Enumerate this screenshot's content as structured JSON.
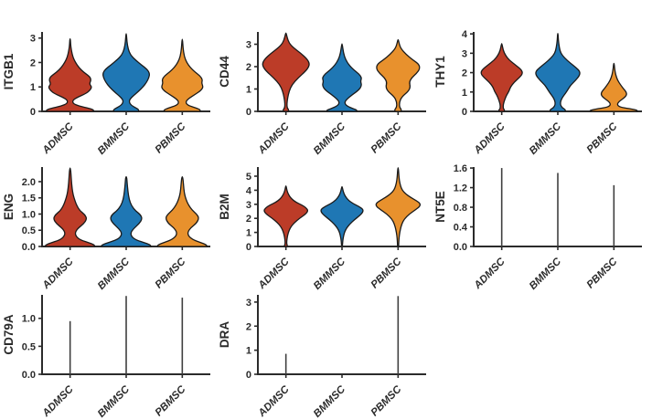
{
  "figure": {
    "categories": [
      "ADMSC",
      "BMMSC",
      "PBMSC"
    ],
    "colors": {
      "ADMSC": "#bc3c28",
      "BMMSC": "#1f77b4",
      "PBMSC": "#e8912d",
      "outline": "#1a1a1a",
      "axis": "#2b2b2b",
      "stem": "#3f3f3f",
      "text": "#2b2b2b",
      "background": "#ffffff"
    }
  },
  "chart_data": [
    {
      "type": "violin",
      "gene": "ITGB1",
      "ylabel": "ITGB1",
      "xlabel": "",
      "ylim": [
        0,
        3.25
      ],
      "tick_values": [
        0,
        1,
        2,
        3
      ],
      "tick_labels": [
        "0",
        "1",
        "2",
        "3"
      ],
      "categories": [
        "ADMSC",
        "BMMSC",
        "PBMSC"
      ],
      "violins": {
        "ADMSC": [
          [
            0,
            0.95
          ],
          [
            0.05,
            0.97
          ],
          [
            0.12,
            0.8
          ],
          [
            0.22,
            0.35
          ],
          [
            0.32,
            0.12
          ],
          [
            0.45,
            0.1
          ],
          [
            0.58,
            0.3
          ],
          [
            0.72,
            0.62
          ],
          [
            0.85,
            0.8
          ],
          [
            1.0,
            0.88
          ],
          [
            1.12,
            0.78
          ],
          [
            1.28,
            0.85
          ],
          [
            1.42,
            0.8
          ],
          [
            1.6,
            0.55
          ],
          [
            1.8,
            0.35
          ],
          [
            2.0,
            0.22
          ],
          [
            2.2,
            0.12
          ],
          [
            2.5,
            0.05
          ],
          [
            2.75,
            0.02
          ],
          [
            2.97,
            0.01
          ]
        ],
        "BMMSC": [
          [
            0,
            0.5
          ],
          [
            0.06,
            0.52
          ],
          [
            0.14,
            0.4
          ],
          [
            0.25,
            0.2
          ],
          [
            0.38,
            0.12
          ],
          [
            0.5,
            0.15
          ],
          [
            0.65,
            0.3
          ],
          [
            0.82,
            0.5
          ],
          [
            1.0,
            0.68
          ],
          [
            1.18,
            0.82
          ],
          [
            1.38,
            0.92
          ],
          [
            1.55,
            0.95
          ],
          [
            1.72,
            0.85
          ],
          [
            1.9,
            0.62
          ],
          [
            2.1,
            0.38
          ],
          [
            2.3,
            0.18
          ],
          [
            2.55,
            0.08
          ],
          [
            2.85,
            0.03
          ],
          [
            3.18,
            0.01
          ]
        ],
        "PBMSC": [
          [
            0,
            0.72
          ],
          [
            0.06,
            0.75
          ],
          [
            0.14,
            0.55
          ],
          [
            0.25,
            0.22
          ],
          [
            0.38,
            0.13
          ],
          [
            0.52,
            0.25
          ],
          [
            0.68,
            0.5
          ],
          [
            0.85,
            0.75
          ],
          [
            1.0,
            0.85
          ],
          [
            1.15,
            0.78
          ],
          [
            1.3,
            0.82
          ],
          [
            1.45,
            0.72
          ],
          [
            1.62,
            0.5
          ],
          [
            1.8,
            0.32
          ],
          [
            2.0,
            0.18
          ],
          [
            2.25,
            0.08
          ],
          [
            2.6,
            0.03
          ],
          [
            2.95,
            0.01
          ]
        ]
      }
    },
    {
      "type": "violin",
      "gene": "CD44",
      "ylabel": "CD44",
      "xlabel": "",
      "ylim": [
        0,
        3.55
      ],
      "tick_values": [
        0,
        1,
        2,
        3
      ],
      "tick_labels": [
        "0",
        "1",
        "2",
        "3"
      ],
      "categories": [
        "ADMSC",
        "BMMSC",
        "PBMSC"
      ],
      "violins": {
        "ADMSC": [
          [
            0,
            0.1
          ],
          [
            0.07,
            0.12
          ],
          [
            0.15,
            0.05
          ],
          [
            0.35,
            0.04
          ],
          [
            0.6,
            0.07
          ],
          [
            0.9,
            0.13
          ],
          [
            1.2,
            0.25
          ],
          [
            1.5,
            0.5
          ],
          [
            1.8,
            0.8
          ],
          [
            2.0,
            0.93
          ],
          [
            2.15,
            0.95
          ],
          [
            2.35,
            0.85
          ],
          [
            2.6,
            0.6
          ],
          [
            2.85,
            0.3
          ],
          [
            3.05,
            0.13
          ],
          [
            3.3,
            0.05
          ],
          [
            3.5,
            0.01
          ]
        ],
        "BMMSC": [
          [
            0,
            0.6
          ],
          [
            0.05,
            0.62
          ],
          [
            0.12,
            0.45
          ],
          [
            0.25,
            0.18
          ],
          [
            0.4,
            0.1
          ],
          [
            0.55,
            0.2
          ],
          [
            0.75,
            0.42
          ],
          [
            0.95,
            0.68
          ],
          [
            1.15,
            0.8
          ],
          [
            1.35,
            0.75
          ],
          [
            1.5,
            0.8
          ],
          [
            1.68,
            0.68
          ],
          [
            1.85,
            0.48
          ],
          [
            2.05,
            0.3
          ],
          [
            2.3,
            0.15
          ],
          [
            2.6,
            0.06
          ],
          [
            3.02,
            0.01
          ]
        ],
        "PBMSC": [
          [
            0,
            0.12
          ],
          [
            0.08,
            0.14
          ],
          [
            0.18,
            0.06
          ],
          [
            0.4,
            0.05
          ],
          [
            0.65,
            0.15
          ],
          [
            0.9,
            0.42
          ],
          [
            1.1,
            0.5
          ],
          [
            1.3,
            0.45
          ],
          [
            1.5,
            0.55
          ],
          [
            1.7,
            0.75
          ],
          [
            1.9,
            0.88
          ],
          [
            2.1,
            0.85
          ],
          [
            2.3,
            0.6
          ],
          [
            2.55,
            0.32
          ],
          [
            2.8,
            0.12
          ],
          [
            3.0,
            0.05
          ],
          [
            3.2,
            0.01
          ]
        ]
      }
    },
    {
      "type": "violin",
      "gene": "THY1",
      "ylabel": "THY1",
      "xlabel": "",
      "ylim": [
        0,
        4.1
      ],
      "tick_values": [
        0,
        1,
        2,
        3,
        4
      ],
      "tick_labels": [
        "0",
        "1",
        "2",
        "3",
        "4"
      ],
      "categories": [
        "ADMSC",
        "BMMSC",
        "PBMSC"
      ],
      "violins": {
        "ADMSC": [
          [
            0,
            0.1
          ],
          [
            0.07,
            0.12
          ],
          [
            0.15,
            0.06
          ],
          [
            0.35,
            0.06
          ],
          [
            0.6,
            0.12
          ],
          [
            0.85,
            0.2
          ],
          [
            1.05,
            0.3
          ],
          [
            1.25,
            0.35
          ],
          [
            1.5,
            0.5
          ],
          [
            1.75,
            0.72
          ],
          [
            1.95,
            0.85
          ],
          [
            2.15,
            0.8
          ],
          [
            2.4,
            0.55
          ],
          [
            2.65,
            0.3
          ],
          [
            2.9,
            0.15
          ],
          [
            3.15,
            0.06
          ],
          [
            3.5,
            0.01
          ]
        ],
        "BMMSC": [
          [
            0,
            0.3
          ],
          [
            0.08,
            0.32
          ],
          [
            0.18,
            0.18
          ],
          [
            0.35,
            0.1
          ],
          [
            0.55,
            0.12
          ],
          [
            0.75,
            0.2
          ],
          [
            0.95,
            0.32
          ],
          [
            1.15,
            0.42
          ],
          [
            1.35,
            0.52
          ],
          [
            1.6,
            0.72
          ],
          [
            1.85,
            0.88
          ],
          [
            2.05,
            0.9
          ],
          [
            2.25,
            0.75
          ],
          [
            2.5,
            0.5
          ],
          [
            2.75,
            0.28
          ],
          [
            3.0,
            0.12
          ],
          [
            3.3,
            0.06
          ],
          [
            3.7,
            0.02
          ],
          [
            4.02,
            0.01
          ]
        ],
        "PBMSC": [
          [
            0,
            0.95
          ],
          [
            0.05,
            0.97
          ],
          [
            0.12,
            0.75
          ],
          [
            0.2,
            0.3
          ],
          [
            0.3,
            0.15
          ],
          [
            0.42,
            0.15
          ],
          [
            0.55,
            0.25
          ],
          [
            0.7,
            0.42
          ],
          [
            0.85,
            0.52
          ],
          [
            1.0,
            0.5
          ],
          [
            1.15,
            0.4
          ],
          [
            1.35,
            0.28
          ],
          [
            1.6,
            0.15
          ],
          [
            1.9,
            0.07
          ],
          [
            2.2,
            0.03
          ],
          [
            2.48,
            0.01
          ]
        ]
      }
    },
    {
      "type": "violin",
      "gene": "ENG",
      "ylabel": "ENG",
      "xlabel": "",
      "ylim": [
        0,
        2.45
      ],
      "tick_values": [
        0,
        0.5,
        1.0,
        1.5,
        2.0
      ],
      "tick_labels": [
        "0.0",
        "0.5",
        "1.0",
        "1.5",
        "2.0"
      ],
      "categories": [
        "ADMSC",
        "BMMSC",
        "PBMSC"
      ],
      "violins": {
        "ADMSC": [
          [
            0,
            1.0
          ],
          [
            0.04,
            1.0
          ],
          [
            0.1,
            0.82
          ],
          [
            0.2,
            0.42
          ],
          [
            0.3,
            0.25
          ],
          [
            0.42,
            0.2
          ],
          [
            0.55,
            0.3
          ],
          [
            0.7,
            0.55
          ],
          [
            0.85,
            0.68
          ],
          [
            0.98,
            0.6
          ],
          [
            1.1,
            0.4
          ],
          [
            1.25,
            0.28
          ],
          [
            1.4,
            0.2
          ],
          [
            1.6,
            0.12
          ],
          [
            1.8,
            0.08
          ],
          [
            2.05,
            0.05
          ],
          [
            2.42,
            0.02
          ]
        ],
        "BMMSC": [
          [
            0,
            1.0
          ],
          [
            0.04,
            1.0
          ],
          [
            0.1,
            0.8
          ],
          [
            0.2,
            0.4
          ],
          [
            0.3,
            0.22
          ],
          [
            0.42,
            0.18
          ],
          [
            0.55,
            0.3
          ],
          [
            0.7,
            0.52
          ],
          [
            0.85,
            0.65
          ],
          [
            0.98,
            0.58
          ],
          [
            1.1,
            0.38
          ],
          [
            1.25,
            0.22
          ],
          [
            1.45,
            0.12
          ],
          [
            1.7,
            0.07
          ],
          [
            1.95,
            0.04
          ],
          [
            2.15,
            0.02
          ]
        ],
        "PBMSC": [
          [
            0,
            1.0
          ],
          [
            0.04,
            1.0
          ],
          [
            0.1,
            0.82
          ],
          [
            0.2,
            0.45
          ],
          [
            0.32,
            0.25
          ],
          [
            0.45,
            0.22
          ],
          [
            0.58,
            0.35
          ],
          [
            0.72,
            0.58
          ],
          [
            0.88,
            0.68
          ],
          [
            1.0,
            0.58
          ],
          [
            1.12,
            0.4
          ],
          [
            1.28,
            0.25
          ],
          [
            1.45,
            0.15
          ],
          [
            1.65,
            0.08
          ],
          [
            1.9,
            0.05
          ],
          [
            2.15,
            0.02
          ]
        ]
      }
    },
    {
      "type": "violin",
      "gene": "B2M",
      "ylabel": "B2M",
      "xlabel": "",
      "ylim": [
        0,
        5.65
      ],
      "tick_values": [
        0,
        1,
        2,
        3,
        4,
        5
      ],
      "tick_labels": [
        "0",
        "1",
        "2",
        "3",
        "4",
        "5"
      ],
      "categories": [
        "ADMSC",
        "BMMSC",
        "PBMSC"
      ],
      "violins": {
        "ADMSC": [
          [
            0,
            0.05
          ],
          [
            0.08,
            0.06
          ],
          [
            0.2,
            0.03
          ],
          [
            0.5,
            0.04
          ],
          [
            0.8,
            0.07
          ],
          [
            1.1,
            0.12
          ],
          [
            1.4,
            0.2
          ],
          [
            1.7,
            0.35
          ],
          [
            2.0,
            0.55
          ],
          [
            2.3,
            0.8
          ],
          [
            2.55,
            0.9
          ],
          [
            2.75,
            0.82
          ],
          [
            2.95,
            0.65
          ],
          [
            3.15,
            0.4
          ],
          [
            3.4,
            0.22
          ],
          [
            3.7,
            0.1
          ],
          [
            4.0,
            0.04
          ],
          [
            4.3,
            0.01
          ]
        ],
        "BMMSC": [
          [
            0.1,
            0.02
          ],
          [
            0.4,
            0.03
          ],
          [
            0.7,
            0.06
          ],
          [
            1.0,
            0.1
          ],
          [
            1.3,
            0.18
          ],
          [
            1.6,
            0.32
          ],
          [
            1.9,
            0.5
          ],
          [
            2.2,
            0.72
          ],
          [
            2.45,
            0.85
          ],
          [
            2.65,
            0.85
          ],
          [
            2.85,
            0.68
          ],
          [
            3.05,
            0.45
          ],
          [
            3.3,
            0.25
          ],
          [
            3.6,
            0.12
          ],
          [
            3.9,
            0.05
          ],
          [
            4.25,
            0.01
          ]
        ],
        "PBMSC": [
          [
            0,
            0.02
          ],
          [
            0.4,
            0.03
          ],
          [
            0.8,
            0.05
          ],
          [
            1.2,
            0.09
          ],
          [
            1.6,
            0.15
          ],
          [
            1.95,
            0.25
          ],
          [
            2.3,
            0.45
          ],
          [
            2.6,
            0.7
          ],
          [
            2.85,
            0.88
          ],
          [
            3.05,
            0.9
          ],
          [
            3.25,
            0.75
          ],
          [
            3.5,
            0.5
          ],
          [
            3.75,
            0.3
          ],
          [
            4.0,
            0.17
          ],
          [
            4.3,
            0.1
          ],
          [
            4.7,
            0.05
          ],
          [
            5.1,
            0.03
          ],
          [
            5.6,
            0.01
          ]
        ]
      }
    },
    {
      "type": "stem",
      "gene": "NT5E",
      "ylabel": "NT5E",
      "xlabel": "",
      "ylim": [
        0,
        1.62
      ],
      "tick_values": [
        0,
        0.4,
        0.8,
        1.2,
        1.6
      ],
      "tick_labels": [
        "0.0",
        "0.4",
        "0.8",
        "1.2",
        "1.6"
      ],
      "categories": [
        "ADMSC",
        "BMMSC",
        "PBMSC"
      ],
      "values": {
        "ADMSC": 1.6,
        "BMMSC": 1.5,
        "PBMSC": 1.25
      }
    },
    {
      "type": "stem",
      "gene": "CD79A",
      "ylabel": "CD79A",
      "xlabel": "",
      "ylim": [
        0,
        1.42
      ],
      "tick_values": [
        0,
        0.5,
        1.0
      ],
      "tick_labels": [
        "0.0",
        "0.5",
        "1.0"
      ],
      "categories": [
        "ADMSC",
        "BMMSC",
        "PBMSC"
      ],
      "values": {
        "ADMSC": 0.95,
        "BMMSC": 1.4,
        "PBMSC": 1.37
      }
    },
    {
      "type": "stem",
      "gene": "DRA",
      "ylabel": "DRA",
      "xlabel": "",
      "ylim": [
        0,
        3.3
      ],
      "tick_values": [
        0,
        1,
        2,
        3
      ],
      "tick_labels": [
        "0",
        "1",
        "2",
        "3"
      ],
      "categories": [
        "ADMSC",
        "BMMSC",
        "PBMSC"
      ],
      "values": {
        "ADMSC": 0.85,
        "BMMSC": 0,
        "PBMSC": 3.25
      }
    }
  ]
}
